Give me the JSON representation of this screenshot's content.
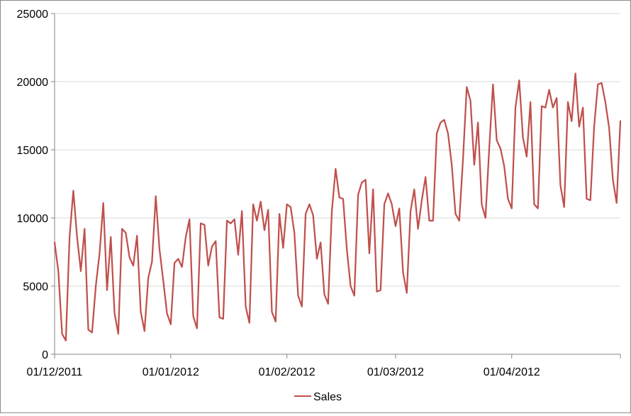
{
  "chart_data": {
    "type": "line",
    "title": "",
    "xlabel": "",
    "ylabel": "",
    "ylim": [
      0,
      25000
    ],
    "yticks": [
      0,
      5000,
      10000,
      15000,
      20000,
      25000
    ],
    "x_start": "2011-12-01",
    "x_end": "2012-04-30",
    "xticks": [
      "01/12/2011",
      "01/01/2012",
      "01/02/2012",
      "01/03/2012",
      "01/04/2012"
    ],
    "grid": true,
    "legend": "bottom",
    "colors": {
      "series": "#c0504d",
      "grid": "#d9d9d9",
      "axis": "#868686"
    },
    "series": [
      {
        "name": "Sales",
        "values": [
          8200,
          6100,
          1500,
          1000,
          8600,
          12000,
          8600,
          6100,
          9200,
          1800,
          1600,
          5000,
          7400,
          11100,
          4700,
          8600,
          3000,
          1500,
          9200,
          8900,
          7100,
          6500,
          8700,
          3100,
          1700,
          5600,
          6800,
          11600,
          7700,
          5400,
          3000,
          2200,
          6700,
          7000,
          6400,
          8600,
          9900,
          2800,
          1900,
          9600,
          9500,
          6500,
          7900,
          8300,
          2700,
          2600,
          9800,
          9600,
          9900,
          7300,
          10500,
          3500,
          2300,
          11000,
          9800,
          11200,
          9100,
          10600,
          3100,
          2400,
          10300,
          7800,
          11000,
          10800,
          8900,
          4300,
          3500,
          10300,
          11000,
          10200,
          7000,
          8200,
          4400,
          3700,
          10500,
          13600,
          11500,
          11400,
          7700,
          5000,
          4300,
          11700,
          12600,
          12800,
          7400,
          12100,
          4600,
          4700,
          11000,
          11800,
          11000,
          9400,
          10700,
          6000,
          4500,
          10500,
          12100,
          9200,
          11300,
          13000,
          9800,
          9800,
          16200,
          17000,
          17200,
          16200,
          13900,
          10300,
          9800,
          14300,
          19600,
          18600,
          13900,
          17000,
          11000,
          10000,
          15100,
          19800,
          15700,
          15100,
          13800,
          11400,
          10700,
          18100,
          20100,
          15900,
          14500,
          18500,
          11000,
          10700,
          18200,
          18100,
          19400,
          18100,
          18800,
          12400,
          10800,
          18500,
          17100,
          20600,
          16700,
          18100,
          11400,
          11300,
          16700,
          19800,
          19900,
          18500,
          16600,
          12800,
          11100,
          17100
        ]
      }
    ]
  }
}
